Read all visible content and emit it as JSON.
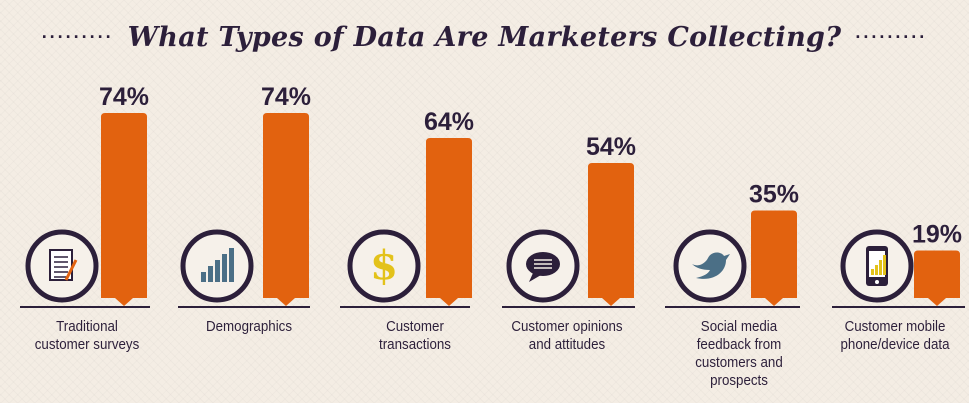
{
  "title": "What Types of Data Are Marketers Collecting?",
  "colors": {
    "bar": "#e2620f",
    "text": "#2c1f3a",
    "icon_ring": "#2c1f3a",
    "background": "#f4ede4"
  },
  "chart_data": {
    "type": "bar",
    "title": "What Types of Data Are Marketers Collecting?",
    "categories": [
      "Traditional customer surveys",
      "Demographics",
      "Customer transactions",
      "Customer opinions and attitudes",
      "Social media feedback from customers and prospects",
      "Customer mobile phone/device data"
    ],
    "values": [
      74,
      74,
      64,
      54,
      35,
      19
    ],
    "value_labels": [
      "74%",
      "74%",
      "64%",
      "54%",
      "35%",
      "19%"
    ],
    "icons": [
      "survey-clipboard-icon",
      "bar-chart-icon",
      "dollar-sign-icon",
      "speech-bubble-icon",
      "twitter-bird-icon",
      "mobile-phone-icon"
    ],
    "ylim": [
      0,
      100
    ],
    "grid": false,
    "legend": "none"
  },
  "labels": {
    "cat0": "Traditional\ncustomer surveys",
    "cat1": "Demographics",
    "cat2": "Customer\ntransactions",
    "cat3": "Customer opinions\nand attitudes",
    "cat4": "Social media\nfeedback from\ncustomers and\nprospects",
    "cat5": "Customer mobile\nphone/device data"
  }
}
